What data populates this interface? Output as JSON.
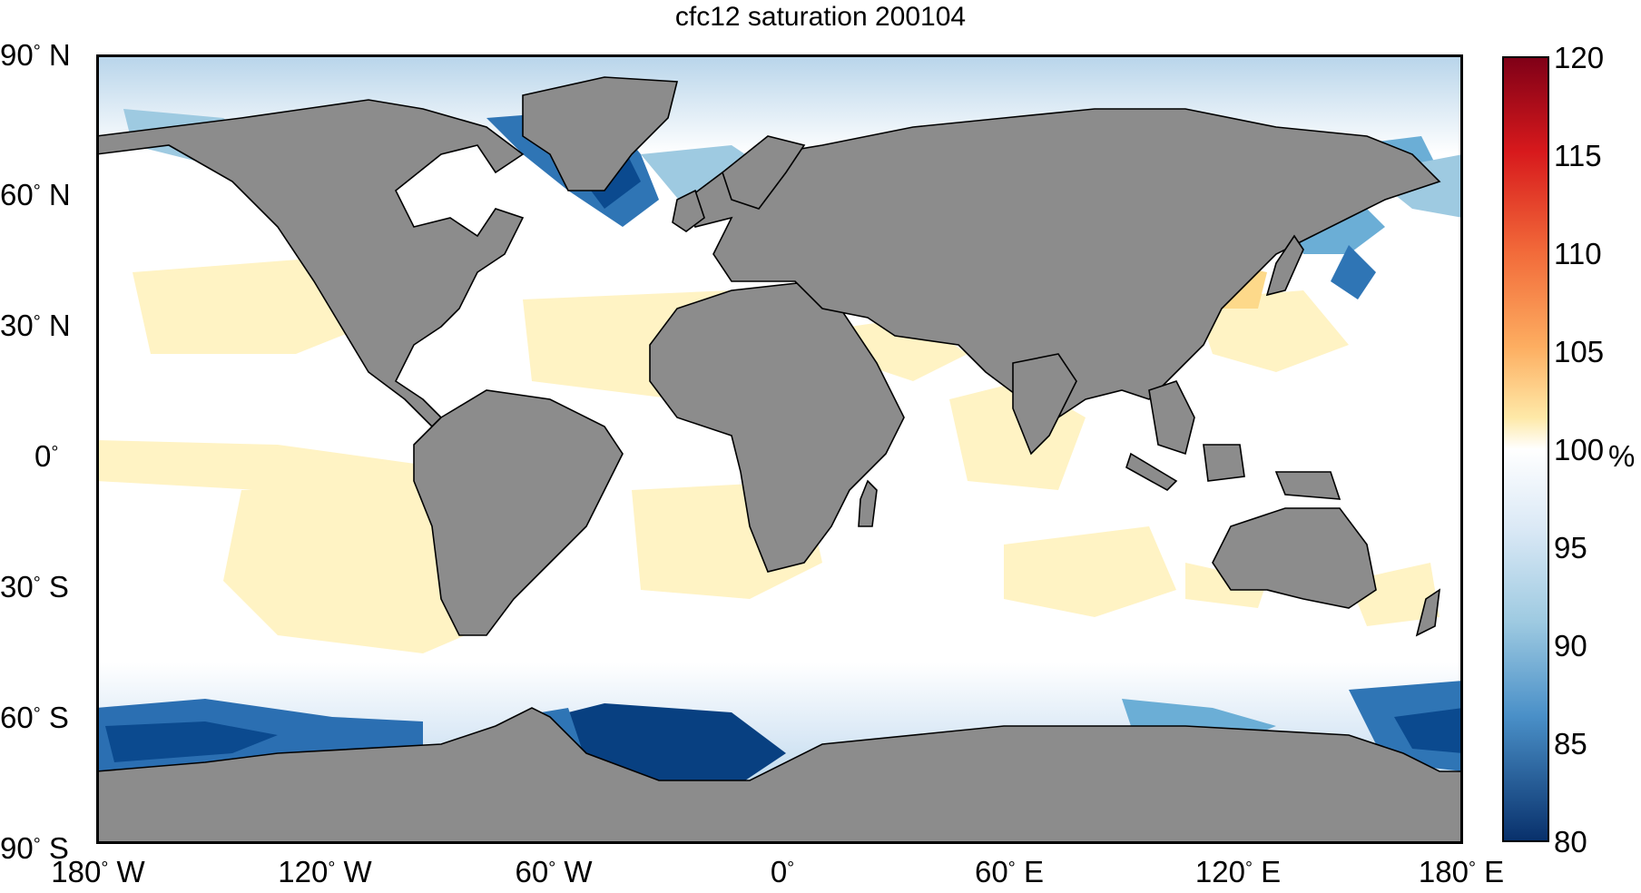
{
  "title": "cfc12 saturation 200104",
  "lat_labels": [
    {
      "deg": "90",
      "hemi": "N"
    },
    {
      "deg": "60",
      "hemi": "N"
    },
    {
      "deg": "30",
      "hemi": "N"
    },
    {
      "deg": "0",
      "hemi": ""
    },
    {
      "deg": "30",
      "hemi": "S"
    },
    {
      "deg": "60",
      "hemi": "S"
    },
    {
      "deg": "90",
      "hemi": "S"
    }
  ],
  "lon_labels": [
    {
      "deg": "180",
      "hemi": "W"
    },
    {
      "deg": "120",
      "hemi": "W"
    },
    {
      "deg": "60",
      "hemi": "W"
    },
    {
      "deg": "0",
      "hemi": ""
    },
    {
      "deg": "60",
      "hemi": "E"
    },
    {
      "deg": "120",
      "hemi": "E"
    },
    {
      "deg": "180",
      "hemi": "E"
    }
  ],
  "colorbar": {
    "min": 80,
    "max": 120,
    "ticks": [
      "120",
      "115",
      "110",
      "105",
      "100",
      "95",
      "90",
      "85",
      "80"
    ],
    "unit": "%",
    "colors": {
      "low": "#08306b",
      "mid_low": "#4a90c8",
      "neutral": "#ffffff",
      "mid_high": "#fdd98a",
      "high": "#e8392b",
      "max": "#7f0017"
    }
  },
  "colors": {
    "land": "#8c8c8c",
    "coast": "#000000",
    "frame": "#000000"
  }
}
